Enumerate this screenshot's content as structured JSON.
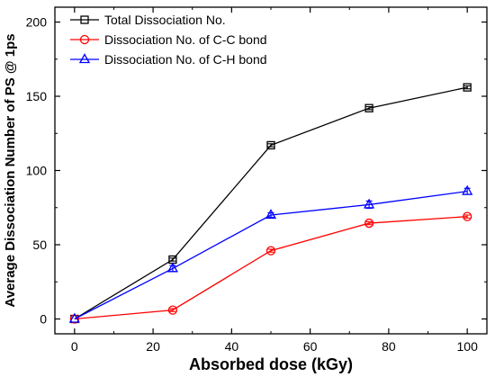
{
  "chart_data": {
    "type": "line",
    "title": "",
    "xlabel": "Absorbed dose (kGy)",
    "ylabel": "Average Dissociation Number of PS @ 1ps",
    "xlim": [
      -5,
      105
    ],
    "ylim": [
      -10,
      210
    ],
    "xticks": [
      0,
      20,
      40,
      60,
      80,
      100
    ],
    "yticks": [
      0,
      50,
      100,
      150,
      200
    ],
    "grid": false,
    "legend_position": "top-left",
    "x": [
      0,
      25,
      50,
      75,
      100
    ],
    "series": [
      {
        "name": "Total Dissociation No.",
        "values": [
          0,
          40,
          117,
          142,
          156
        ],
        "errors": [
          0,
          1,
          1,
          1,
          1
        ],
        "color": "#000000",
        "marker": "square"
      },
      {
        "name": "Dissociation No. of C-C bond",
        "values": [
          0,
          6,
          46,
          64.5,
          69
        ],
        "errors": [
          0,
          1,
          1,
          1,
          1
        ],
        "color": "#ff0000",
        "marker": "circle"
      },
      {
        "name": "Dissociation No. of C-H bond",
        "values": [
          0,
          34,
          70,
          77,
          86
        ],
        "errors": [
          0,
          2,
          1.5,
          2.5,
          2
        ],
        "color": "#0000ff",
        "marker": "triangle"
      }
    ]
  }
}
